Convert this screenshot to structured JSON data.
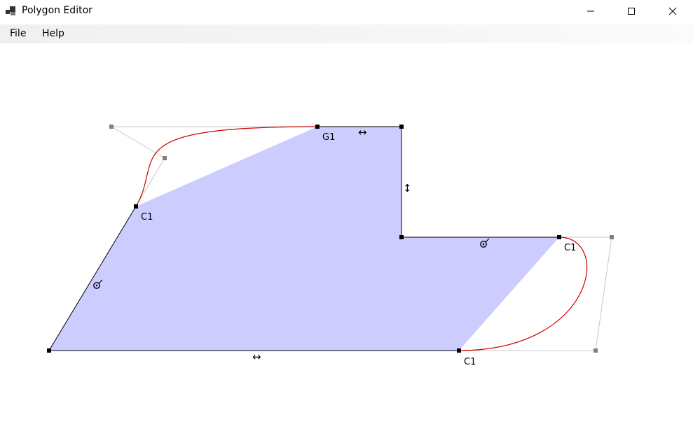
{
  "window": {
    "title": "Polygon Editor",
    "app_icon": "app-icon",
    "controls": {
      "minimize_icon": "minimize-icon",
      "maximize_icon": "maximize-icon",
      "close_icon": "close-icon"
    }
  },
  "menu": {
    "items": [
      {
        "label": "File"
      },
      {
        "label": "Help"
      }
    ]
  },
  "canvas": {
    "fill_color": "#ccccff",
    "edge_color": "#000000",
    "bezier_color": "#cc0000",
    "control_line_color": "#c8c8c8",
    "control_point_color": "#808080",
    "vertex_color": "#000000",
    "vertex_labels": [
      "G1",
      "C1",
      "C1",
      "C1"
    ],
    "edge_constraint_icons": {
      "horizontal": "↔",
      "vertical": "↕",
      "fixed_length": "fixed-length-icon"
    }
  }
}
